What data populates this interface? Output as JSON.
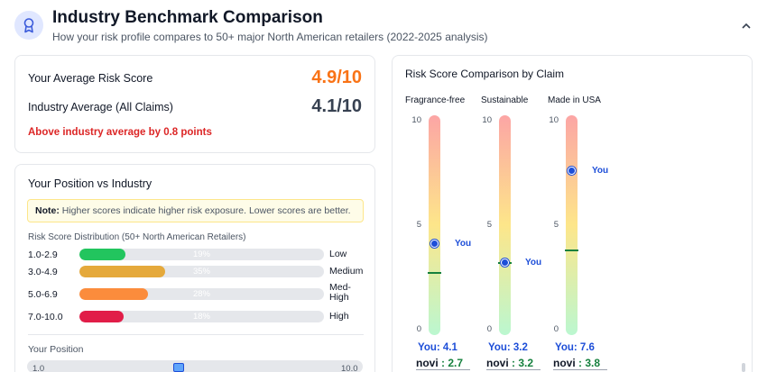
{
  "header": {
    "icon": "award-ribbon-icon",
    "title": "Industry Benchmark Comparison",
    "subtitle": "How your risk profile compares to 50+ major North American retailers (2022-2025 analysis)",
    "collapse_icon": "chevron-up-icon"
  },
  "scores": {
    "your_label": "Your Average Risk Score",
    "your_value": "4.9/10",
    "industry_label": "Industry Average (All Claims)",
    "industry_value": "4.1/10",
    "note": "Above industry average by 0.8 points",
    "colors": {
      "your_value": "#f97316",
      "industry_value": "#374151",
      "note": "#dc2626"
    }
  },
  "position": {
    "title": "Your Position vs Industry",
    "note_bold": "Note:",
    "note_text": " Higher scores indicate higher risk exposure. Lower scores are better.",
    "dist_title": "Risk Score Distribution (50+ North American Retailers)",
    "rows": [
      {
        "range": "1.0-2.9",
        "pct": "19%",
        "fraction": 0.19,
        "level": "Low",
        "color": "#22c55e"
      },
      {
        "range": "3.0-4.9",
        "pct": "35%",
        "fraction": 0.35,
        "level": "Medium",
        "color": "#e5a93b"
      },
      {
        "range": "5.0-6.9",
        "pct": "28%",
        "fraction": 0.28,
        "level": "Med-High",
        "color": "#fb8c3c"
      },
      {
        "range": "7.0-10.0",
        "pct": "18%",
        "fraction": 0.18,
        "level": "High",
        "color": "#e11d48"
      }
    ],
    "your_position_label": "Your Position",
    "scale_min": "1.0",
    "scale_max": "10.0",
    "your_score": 4.9
  },
  "comparison": {
    "title": "Risk Score Comparison by Claim",
    "ticks": [
      "10",
      "5",
      "0"
    ],
    "you_tag": "You",
    "novi_brand": "novi",
    "claims": [
      {
        "name": "Fragrance-free",
        "you_label": "You: 4.1",
        "you": 4.1,
        "novi_label": " : 2.7",
        "industry": 2.7
      },
      {
        "name": "Sustainable",
        "you_label": "You: 3.2",
        "you": 3.2,
        "novi_label": " : 3.2",
        "industry": 3.2
      },
      {
        "name": "Made in USA",
        "you_label": "You: 7.6",
        "you": 7.6,
        "novi_label": " : 3.8",
        "industry": 3.8
      }
    ]
  }
}
